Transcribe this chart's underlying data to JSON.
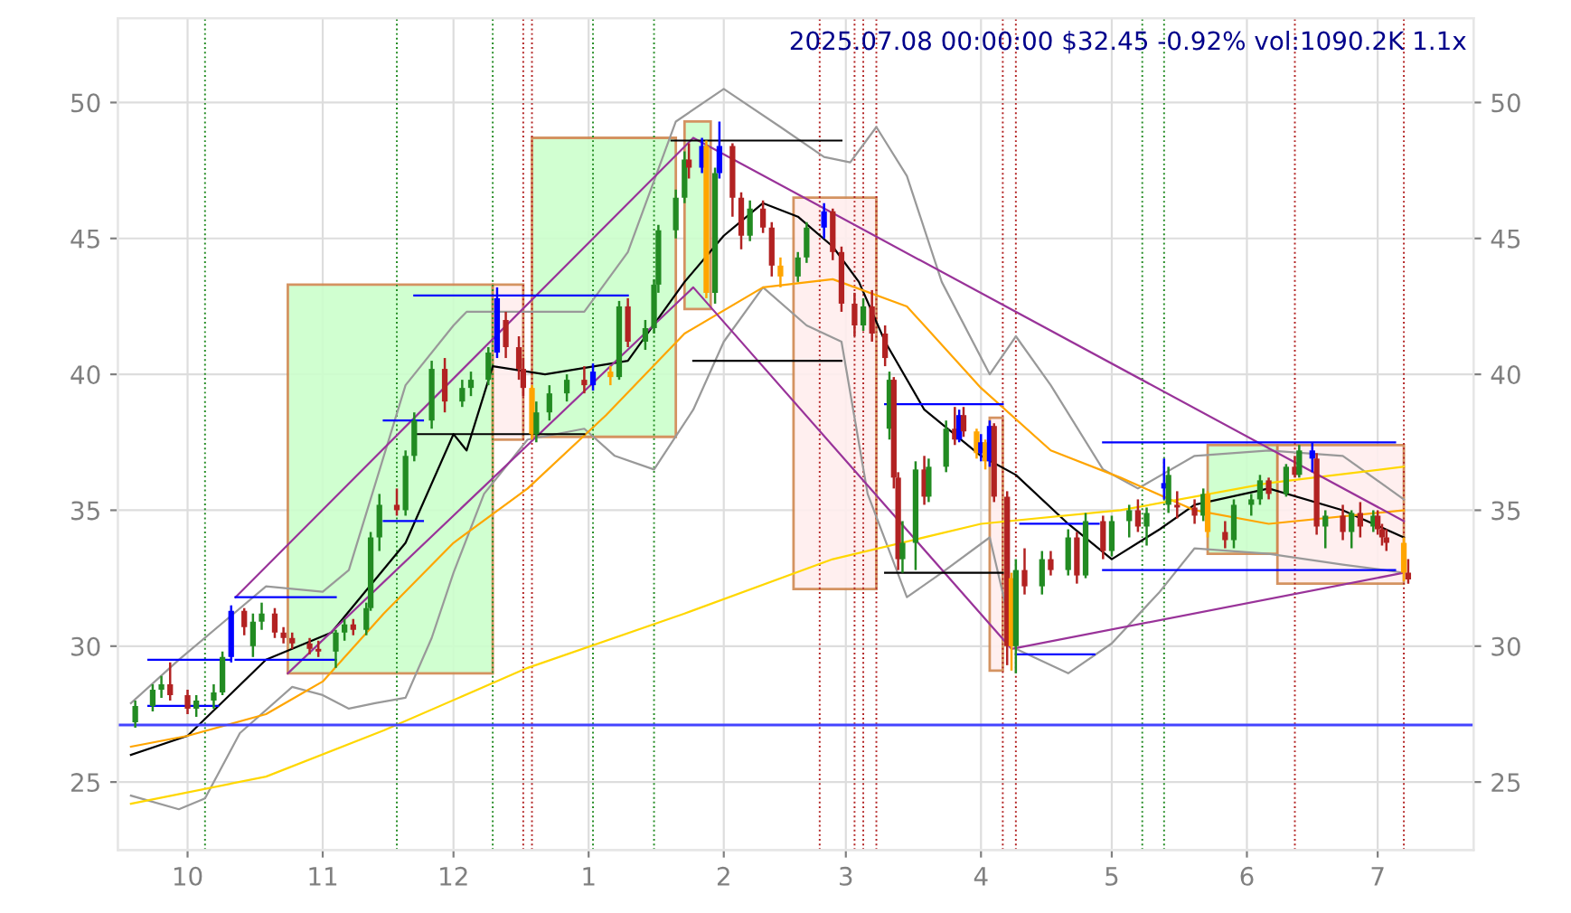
{
  "chart_data": {
    "type": "candlestick",
    "title": "2025.07.08 00:00:00 $32.45 -0.92% vol:1090.2K 1.1x",
    "x": [
      "2024-09-19",
      "2024-09-23",
      "2024-09-25",
      "2024-09-27",
      "2024-10-01",
      "2024-10-03",
      "2024-10-07",
      "2024-10-09",
      "2024-10-11",
      "2024-10-14",
      "2024-10-16",
      "2024-10-18",
      "2024-10-21",
      "2024-10-23",
      "2024-10-25",
      "2024-10-29",
      "2024-10-31",
      "2024-11-04",
      "2024-11-06",
      "2024-11-08",
      "2024-11-11",
      "2024-11-12",
      "2024-11-14",
      "2024-11-18",
      "2024-11-20",
      "2024-11-22",
      "2024-11-26",
      "2024-11-29",
      "2024-12-03",
      "2024-12-05",
      "2024-12-09",
      "2024-12-11",
      "2024-12-13",
      "2024-12-16",
      "2024-12-17",
      "2024-12-19",
      "2024-12-20",
      "2024-12-23",
      "2024-12-27",
      "2024-12-31",
      "2025-01-02",
      "2025-01-06",
      "2025-01-08",
      "2025-01-10",
      "2025-01-14",
      "2025-01-16",
      "2025-01-17",
      "2025-01-21",
      "2025-01-23",
      "2025-01-24",
      "2025-01-27",
      "2025-01-28",
      "2025-01-30",
      "2025-01-31",
      "2025-02-03",
      "2025-02-05",
      "2025-02-07",
      "2025-02-10",
      "2025-02-12",
      "2025-02-14",
      "2025-02-18",
      "2025-02-20",
      "2025-02-24",
      "2025-02-26",
      "2025-02-28",
      "2025-03-03",
      "2025-03-05",
      "2025-03-07",
      "2025-03-10",
      "2025-03-11",
      "2025-03-12",
      "2025-03-13",
      "2025-03-14",
      "2025-03-17",
      "2025-03-19",
      "2025-03-20",
      "2025-03-24",
      "2025-03-26",
      "2025-03-27",
      "2025-03-28",
      "2025-03-31",
      "2025-04-01",
      "2025-04-02",
      "2025-04-03",
      "2025-04-04",
      "2025-04-07",
      "2025-04-08",
      "2025-04-09",
      "2025-04-11",
      "2025-04-15",
      "2025-04-17",
      "2025-04-21",
      "2025-04-23",
      "2025-04-25",
      "2025-04-29",
      "2025-05-01",
      "2025-05-05",
      "2025-05-07",
      "2025-05-09",
      "2025-05-13",
      "2025-05-14",
      "2025-05-16",
      "2025-05-20",
      "2025-05-22",
      "2025-05-23",
      "2025-05-27",
      "2025-05-29",
      "2025-06-02",
      "2025-06-04",
      "2025-06-06",
      "2025-06-10",
      "2025-06-12",
      "2025-06-13",
      "2025-06-16",
      "2025-06-17",
      "2025-06-19",
      "2025-06-23",
      "2025-06-25",
      "2025-06-27",
      "2025-06-30",
      "2025-07-01",
      "2025-07-02",
      "2025-07-03",
      "2025-07-07",
      "2025-07-08"
    ],
    "ohlc": [
      [
        27.2,
        28.0,
        27.0,
        27.8
      ],
      [
        27.8,
        28.6,
        27.6,
        28.4
      ],
      [
        28.4,
        28.9,
        28.1,
        28.6
      ],
      [
        28.6,
        29.4,
        28.0,
        28.2
      ],
      [
        28.2,
        28.4,
        27.5,
        27.7
      ],
      [
        27.7,
        28.2,
        27.4,
        28.0
      ],
      [
        28.0,
        28.6,
        27.7,
        28.3
      ],
      [
        28.3,
        29.8,
        28.2,
        29.6
      ],
      [
        29.6,
        31.5,
        29.4,
        31.3
      ],
      [
        31.3,
        31.4,
        30.4,
        30.7
      ],
      [
        30.0,
        31.2,
        29.6,
        30.9
      ],
      [
        30.9,
        31.6,
        30.6,
        31.2
      ],
      [
        31.2,
        31.4,
        30.3,
        30.5
      ],
      [
        30.5,
        30.7,
        30.1,
        30.3
      ],
      [
        30.3,
        30.5,
        29.9,
        30.1
      ],
      [
        30.1,
        30.3,
        29.7,
        29.9
      ],
      [
        29.9,
        30.2,
        29.6,
        29.8
      ],
      [
        29.8,
        30.6,
        29.2,
        30.5
      ],
      [
        30.5,
        31.0,
        30.2,
        30.8
      ],
      [
        30.8,
        31.0,
        30.4,
        30.6
      ],
      [
        30.6,
        31.6,
        30.4,
        31.4
      ],
      [
        31.4,
        34.2,
        31.3,
        34.0
      ],
      [
        34.0,
        35.6,
        33.5,
        35.2
      ],
      [
        35.2,
        35.8,
        34.8,
        35.0
      ],
      [
        35.0,
        37.2,
        34.8,
        37.0
      ],
      [
        37.0,
        38.6,
        36.8,
        38.3
      ],
      [
        38.3,
        40.5,
        38.0,
        40.2
      ],
      [
        40.2,
        40.6,
        38.6,
        39.0
      ],
      [
        39.0,
        39.8,
        38.8,
        39.5
      ],
      [
        39.5,
        40.1,
        39.2,
        39.8
      ],
      [
        39.8,
        41.0,
        39.6,
        40.8
      ],
      [
        40.8,
        43.2,
        40.6,
        42.8
      ],
      [
        42.0,
        42.3,
        40.6,
        41.0
      ],
      [
        41.0,
        41.4,
        39.8,
        40.2
      ],
      [
        40.2,
        40.6,
        39.2,
        39.5
      ],
      [
        39.5,
        39.6,
        37.6,
        37.8
      ],
      [
        37.8,
        39.0,
        37.5,
        38.6
      ],
      [
        38.6,
        39.6,
        38.3,
        39.3
      ],
      [
        39.3,
        40.0,
        39.0,
        39.8
      ],
      [
        39.8,
        40.3,
        39.3,
        39.6
      ],
      [
        39.6,
        40.4,
        39.4,
        40.1
      ],
      [
        40.1,
        40.3,
        39.6,
        39.9
      ],
      [
        39.9,
        42.7,
        39.8,
        42.5
      ],
      [
        42.5,
        42.8,
        41.0,
        41.2
      ],
      [
        41.2,
        42.0,
        40.9,
        41.7
      ],
      [
        41.7,
        43.5,
        41.5,
        43.3
      ],
      [
        43.3,
        45.5,
        43.0,
        45.3
      ],
      [
        45.3,
        46.8,
        45.0,
        46.5
      ],
      [
        46.5,
        48.2,
        46.3,
        47.9
      ],
      [
        47.9,
        48.5,
        47.2,
        47.6
      ],
      [
        47.6,
        48.7,
        47.4,
        48.4
      ],
      [
        48.4,
        48.6,
        42.8,
        43.0
      ],
      [
        43.0,
        47.6,
        42.6,
        47.4
      ],
      [
        47.4,
        49.3,
        47.2,
        48.4
      ],
      [
        48.4,
        48.5,
        45.8,
        46.5
      ],
      [
        46.5,
        46.7,
        44.6,
        45.1
      ],
      [
        45.1,
        46.4,
        44.9,
        46.1
      ],
      [
        46.1,
        46.4,
        45.2,
        45.4
      ],
      [
        45.4,
        45.6,
        43.6,
        44.0
      ],
      [
        44.0,
        44.3,
        43.2,
        43.6
      ],
      [
        43.6,
        44.5,
        43.4,
        44.3
      ],
      [
        44.3,
        45.6,
        44.1,
        45.4
      ],
      [
        45.4,
        46.3,
        45.0,
        46.0
      ],
      [
        46.0,
        46.1,
        44.2,
        44.5
      ],
      [
        44.5,
        44.7,
        42.3,
        42.6
      ],
      [
        42.6,
        43.0,
        41.4,
        41.8
      ],
      [
        41.8,
        42.8,
        41.6,
        42.5
      ],
      [
        42.5,
        43.1,
        41.2,
        41.5
      ],
      [
        41.5,
        41.8,
        40.3,
        40.6
      ],
      [
        38.0,
        40.1,
        37.6,
        39.8
      ],
      [
        39.8,
        39.9,
        35.8,
        36.2
      ],
      [
        36.2,
        36.4,
        32.8,
        33.2
      ],
      [
        33.2,
        34.6,
        32.7,
        33.8
      ],
      [
        33.8,
        36.8,
        32.8,
        36.5
      ],
      [
        36.5,
        37.0,
        35.2,
        35.5
      ],
      [
        35.5,
        36.9,
        35.3,
        36.6
      ],
      [
        36.6,
        38.3,
        36.4,
        38.0
      ],
      [
        38.0,
        38.8,
        37.4,
        37.6
      ],
      [
        37.6,
        38.7,
        37.5,
        38.5
      ],
      [
        38.5,
        38.8,
        37.7,
        37.9
      ],
      [
        37.9,
        38.0,
        36.9,
        37.1
      ],
      [
        37.1,
        37.8,
        36.8,
        37.5
      ],
      [
        37.5,
        37.6,
        36.5,
        36.8
      ],
      [
        36.8,
        38.3,
        36.6,
        38.1
      ],
      [
        38.1,
        38.2,
        35.3,
        35.5
      ],
      [
        35.5,
        35.7,
        29.3,
        30.0
      ],
      [
        30.0,
        32.7,
        29.1,
        32.5
      ],
      [
        30.0,
        33.2,
        29.0,
        32.8
      ],
      [
        32.8,
        33.6,
        31.9,
        32.2
      ],
      [
        32.2,
        33.5,
        31.9,
        33.2
      ],
      [
        33.2,
        33.5,
        32.6,
        32.8
      ],
      [
        32.8,
        34.3,
        32.6,
        34.0
      ],
      [
        34.0,
        34.2,
        32.3,
        32.6
      ],
      [
        32.6,
        34.9,
        32.5,
        34.6
      ],
      [
        34.6,
        34.8,
        33.2,
        33.5
      ],
      [
        33.5,
        34.8,
        33.3,
        34.6
      ],
      [
        34.6,
        35.2,
        34.0,
        35.0
      ],
      [
        35.0,
        35.4,
        34.2,
        34.4
      ],
      [
        34.4,
        35.1,
        33.7,
        34.9
      ],
      [
        35.8,
        36.9,
        35.4,
        36.0
      ],
      [
        35.2,
        36.6,
        34.9,
        36.3
      ],
      [
        35.2,
        35.7,
        34.7,
        35.1
      ],
      [
        35.1,
        35.4,
        34.5,
        34.8
      ],
      [
        34.8,
        35.8,
        34.6,
        35.6
      ],
      [
        35.6,
        35.7,
        34.0,
        34.2
      ],
      [
        34.2,
        34.6,
        33.6,
        33.9
      ],
      [
        33.9,
        35.4,
        33.6,
        35.2
      ],
      [
        35.2,
        35.6,
        34.8,
        35.4
      ],
      [
        35.4,
        36.3,
        35.2,
        36.1
      ],
      [
        36.1,
        36.2,
        35.4,
        35.6
      ],
      [
        35.6,
        36.7,
        35.5,
        36.6
      ],
      [
        36.6,
        37.0,
        36.2,
        36.3
      ],
      [
        36.3,
        37.4,
        36.2,
        37.2
      ],
      [
        37.2,
        37.5,
        36.4,
        36.9
      ],
      [
        36.9,
        37.1,
        34.1,
        34.4
      ],
      [
        34.4,
        35.0,
        33.6,
        34.8
      ],
      [
        34.8,
        35.2,
        33.9,
        34.2
      ],
      [
        34.2,
        35.0,
        33.6,
        34.9
      ],
      [
        34.9,
        35.3,
        34.0,
        34.4
      ],
      [
        34.4,
        35.0,
        34.2,
        34.8
      ],
      [
        34.8,
        35.0,
        34.1,
        34.3
      ],
      [
        34.3,
        34.5,
        33.7,
        34.0
      ],
      [
        34.0,
        34.3,
        33.5,
        33.8
      ],
      [
        33.8,
        34.0,
        32.4,
        32.7
      ],
      [
        32.7,
        33.2,
        32.3,
        32.45
      ]
    ],
    "colors": [
      "#228b22",
      "#228b22",
      "#228b22",
      "#b22222",
      "#b22222",
      "#228b22",
      "#228b22",
      "#228b22",
      "#0000ff",
      "#b22222",
      "#228b22",
      "#228b22",
      "#b22222",
      "#b22222",
      "#b22222",
      "#b22222",
      "#b22222",
      "#228b22",
      "#228b22",
      "#b22222",
      "#228b22",
      "#228b22",
      "#228b22",
      "#b22222",
      "#228b22",
      "#228b22",
      "#228b22",
      "#b22222",
      "#228b22",
      "#228b22",
      "#228b22",
      "#0000ff",
      "#b22222",
      "#b22222",
      "#b22222",
      "#ffa500",
      "#228b22",
      "#228b22",
      "#228b22",
      "#b22222",
      "#0000ff",
      "#ffa500",
      "#228b22",
      "#b22222",
      "#228b22",
      "#228b22",
      "#228b22",
      "#228b22",
      "#228b22",
      "#b22222",
      "#0000ff",
      "#ffa500",
      "#228b22",
      "#0000ff",
      "#b22222",
      "#b22222",
      "#228b22",
      "#b22222",
      "#b22222",
      "#ffa500",
      "#228b22",
      "#228b22",
      "#0000ff",
      "#b22222",
      "#b22222",
      "#b22222",
      "#228b22",
      "#b22222",
      "#b22222",
      "#228b22",
      "#b22222",
      "#b22222",
      "#228b22",
      "#228b22",
      "#b22222",
      "#228b22",
      "#228b22",
      "#b22222",
      "#0000ff",
      "#b22222",
      "#ffa500",
      "#0000ff",
      "#ffa500",
      "#0000ff",
      "#b22222",
      "#b22222",
      "#ffa500",
      "#228b22",
      "#b22222",
      "#228b22",
      "#b22222",
      "#228b22",
      "#b22222",
      "#228b22",
      "#b22222",
      "#228b22",
      "#228b22",
      "#b22222",
      "#228b22",
      "#0000ff",
      "#228b22",
      "#b22222",
      "#b22222",
      "#228b22",
      "#ffa500",
      "#b22222",
      "#228b22",
      "#228b22",
      "#228b22",
      "#b22222",
      "#228b22",
      "#b22222",
      "#228b22",
      "#0000ff",
      "#b22222",
      "#228b22",
      "#b22222",
      "#228b22",
      "#b22222",
      "#228b22",
      "#b22222",
      "#b22222",
      "#b22222",
      "#ffa500",
      "#b22222"
    ],
    "series": [
      {
        "type": "area",
        "color": "#ccffcc",
        "x": [
          "2024-10-24",
          "2024-10-24",
          "2024-12-10",
          "2024-12-10"
        ],
        "values": [
          29.0,
          43.3,
          43.3,
          29.0
        ]
      },
      {
        "type": "area",
        "color": "#ffeeee",
        "x": [
          "2024-12-10",
          "2024-12-10",
          "2024-12-17",
          "2024-12-17"
        ],
        "values": [
          37.6,
          43.3,
          43.3,
          37.6
        ]
      },
      {
        "type": "area",
        "color": "#ccffcc",
        "x": [
          "2024-12-19",
          "2024-12-19",
          "2025-01-21",
          "2025-01-21"
        ],
        "values": [
          37.7,
          48.7,
          48.7,
          37.7
        ]
      },
      {
        "type": "area",
        "color": "#ccffcc",
        "x": [
          "2025-01-23",
          "2025-01-23",
          "2025-01-29",
          "2025-01-29"
        ],
        "values": [
          42.4,
          49.3,
          49.3,
          42.4
        ]
      },
      {
        "type": "area",
        "color": "#ffeeee",
        "x": [
          "2025-02-17",
          "2025-02-17",
          "2025-03-08",
          "2025-03-08"
        ],
        "values": [
          32.1,
          46.5,
          46.5,
          32.1
        ]
      },
      {
        "type": "area",
        "color": "#ffeeee",
        "x": [
          "2025-04-03",
          "2025-04-03",
          "2025-04-06",
          "2025-04-06"
        ],
        "values": [
          29.1,
          38.4,
          38.4,
          29.1
        ]
      },
      {
        "type": "area",
        "color": "#ccffcc",
        "x": [
          "2025-05-23",
          "2025-05-23",
          "2025-06-08",
          "2025-06-08"
        ],
        "values": [
          33.4,
          37.4,
          37.4,
          33.4
        ]
      },
      {
        "type": "area",
        "color": "#ffeeee",
        "x": [
          "2025-06-08",
          "2025-06-08",
          "2025-07-07",
          "2025-07-07"
        ],
        "values": [
          32.3,
          37.4,
          37.4,
          32.3
        ]
      },
      {
        "type": "line",
        "color": "#999999",
        "x": [
          "2024-09-18",
          "2024-09-29",
          "2024-10-19",
          "2024-11-01",
          "2024-11-07",
          "2024-11-20",
          "2024-12-01",
          "2024-12-04",
          "2024-12-14",
          "2024-12-31",
          "2025-01-10",
          "2025-01-21",
          "2025-02-01",
          "2025-02-14",
          "2025-02-24",
          "2025-03-02",
          "2025-03-08",
          "2025-03-15",
          "2025-03-23",
          "2025-04-03",
          "2025-04-09",
          "2025-04-17",
          "2025-04-29",
          "2025-05-07",
          "2025-05-20",
          "2025-06-06",
          "2025-06-23",
          "2025-07-07"
        ],
        "values": [
          27.9,
          29.5,
          32.2,
          32.0,
          32.8,
          39.6,
          41.8,
          42.3,
          42.3,
          42.3,
          44.5,
          49.3,
          50.5,
          49.1,
          48.0,
          47.8,
          49.1,
          47.3,
          43.4,
          40.0,
          41.4,
          39.6,
          36.5,
          35.8,
          37.0,
          37.2,
          37.0,
          35.4
        ]
      },
      {
        "type": "line",
        "color": "#999999",
        "x": [
          "2024-09-18",
          "2024-09-29",
          "2024-10-05",
          "2024-10-13",
          "2024-10-25",
          "2024-11-01",
          "2024-11-07",
          "2024-11-13",
          "2024-11-20",
          "2024-11-26",
          "2024-12-01",
          "2024-12-08",
          "2024-12-18",
          "2024-12-31",
          "2025-01-07",
          "2025-01-16",
          "2025-01-25",
          "2025-02-01",
          "2025-02-10",
          "2025-02-20",
          "2025-02-28",
          "2025-03-06",
          "2025-03-15",
          "2025-03-23",
          "2025-04-03",
          "2025-04-09",
          "2025-04-21",
          "2025-05-01",
          "2025-05-12",
          "2025-05-20",
          "2025-06-06",
          "2025-06-23",
          "2025-07-07"
        ],
        "values": [
          24.5,
          24.0,
          24.4,
          26.8,
          28.5,
          28.2,
          27.7,
          27.9,
          28.1,
          30.3,
          32.7,
          35.6,
          37.6,
          38.0,
          37.0,
          36.5,
          38.7,
          41.2,
          43.2,
          41.8,
          41.2,
          35.6,
          31.8,
          32.7,
          34.0,
          29.9,
          29.0,
          30.1,
          32.0,
          33.6,
          33.4,
          33.0,
          32.7
        ]
      },
      {
        "type": "line",
        "color": "#000000",
        "x": [
          "2024-09-18",
          "2024-10-01",
          "2024-10-19",
          "2024-11-03",
          "2024-11-20",
          "2024-12-01",
          "2024-12-04",
          "2024-12-10",
          "2024-12-22",
          "2025-01-10",
          "2025-01-23",
          "2025-02-01",
          "2025-02-10",
          "2025-02-18",
          "2025-02-26",
          "2025-03-04",
          "2025-03-10",
          "2025-03-19",
          "2025-04-01",
          "2025-04-09",
          "2025-04-21",
          "2025-05-01",
          "2025-05-12",
          "2025-05-20",
          "2025-06-06",
          "2025-06-23",
          "2025-07-07"
        ],
        "values": [
          26.0,
          26.7,
          29.5,
          30.5,
          33.8,
          37.8,
          37.2,
          40.3,
          40.0,
          40.5,
          43.4,
          45.1,
          46.3,
          45.8,
          44.7,
          43.4,
          41.2,
          38.7,
          37.0,
          36.3,
          34.5,
          33.2,
          34.3,
          35.2,
          35.8,
          35.0,
          34.0
        ]
      },
      {
        "type": "line",
        "color": "#ffa500",
        "x": [
          "2024-09-18",
          "2024-10-01",
          "2024-10-19",
          "2024-11-01",
          "2024-11-15",
          "2024-12-01",
          "2024-12-18",
          "2025-01-05",
          "2025-01-23",
          "2025-02-10",
          "2025-02-26",
          "2025-03-15",
          "2025-04-01",
          "2025-04-17",
          "2025-05-03",
          "2025-05-20",
          "2025-06-06",
          "2025-07-07"
        ],
        "values": [
          26.3,
          26.7,
          27.5,
          28.7,
          31.2,
          33.8,
          35.8,
          38.5,
          41.5,
          43.2,
          43.5,
          42.5,
          39.5,
          37.2,
          36.2,
          35.0,
          34.5,
          35.0
        ]
      },
      {
        "type": "line",
        "color": "#ffd700",
        "x": [
          "2024-09-18",
          "2024-10-19",
          "2024-11-15",
          "2024-12-18",
          "2025-01-23",
          "2025-02-26",
          "2025-04-01",
          "2025-05-03",
          "2025-06-06",
          "2025-07-07"
        ],
        "values": [
          24.2,
          25.2,
          26.9,
          29.2,
          31.2,
          33.2,
          34.5,
          35.0,
          36.0,
          36.6
        ]
      },
      {
        "type": "line",
        "color": "#993399",
        "x": [
          "2024-10-12",
          "2025-01-25",
          "2025-07-07"
        ],
        "values": [
          31.8,
          48.7,
          34.6
        ]
      },
      {
        "type": "line",
        "color": "#993399",
        "x": [
          "2024-10-24",
          "2025-01-25",
          "2025-04-08",
          "2025-07-07"
        ],
        "values": [
          29.0,
          43.2,
          29.9,
          32.7
        ]
      },
      {
        "type": "line",
        "color": "#0000ff",
        "x": [
          "2024-09-22",
          "2024-10-11"
        ],
        "values": [
          29.5,
          29.5
        ]
      },
      {
        "type": "line",
        "color": "#0000ff",
        "x": [
          "2024-09-22",
          "2024-10-08"
        ],
        "values": [
          27.8,
          27.8
        ]
      },
      {
        "type": "line",
        "color": "#0000ff",
        "x": [
          "2024-10-12",
          "2024-11-04"
        ],
        "values": [
          31.8,
          31.8
        ]
      },
      {
        "type": "line",
        "color": "#0000ff",
        "x": [
          "2024-10-12",
          "2024-11-04"
        ],
        "values": [
          29.5,
          29.5
        ]
      },
      {
        "type": "line",
        "color": "#0000ff",
        "x": [
          "2024-11-22",
          "2025-01-10"
        ],
        "values": [
          42.9,
          42.9
        ]
      },
      {
        "type": "line",
        "color": "#0000ff",
        "x": [
          "2024-11-15",
          "2024-11-24"
        ],
        "values": [
          38.3,
          38.3
        ]
      },
      {
        "type": "line",
        "color": "#0000ff",
        "x": [
          "2024-11-15",
          "2024-11-24"
        ],
        "values": [
          34.6,
          34.6
        ]
      },
      {
        "type": "line",
        "color": "#000000",
        "x": [
          "2024-11-22",
          "2024-12-31"
        ],
        "values": [
          37.8,
          37.8
        ]
      },
      {
        "type": "line",
        "color": "#000000",
        "x": [
          "2025-01-20",
          "2025-02-28"
        ],
        "values": [
          48.6,
          48.6
        ]
      },
      {
        "type": "line",
        "color": "#000000",
        "x": [
          "2025-01-25",
          "2025-02-28"
        ],
        "values": [
          40.5,
          40.5
        ]
      },
      {
        "type": "line",
        "color": "#0000ff",
        "x": [
          "2025-03-10",
          "2025-04-06"
        ],
        "values": [
          38.9,
          38.9
        ]
      },
      {
        "type": "line",
        "color": "#000000",
        "x": [
          "2025-03-10",
          "2025-04-06"
        ],
        "values": [
          32.7,
          32.7
        ]
      },
      {
        "type": "line",
        "color": "#0000ff",
        "x": [
          "2025-04-09",
          "2025-04-27"
        ],
        "values": [
          29.7,
          29.7
        ]
      },
      {
        "type": "line",
        "color": "#0000ff",
        "x": [
          "2025-04-10",
          "2025-04-28"
        ],
        "values": [
          34.5,
          34.5
        ]
      },
      {
        "type": "line",
        "color": "#0000ff",
        "x": [
          "2025-04-29",
          "2025-07-05"
        ],
        "values": [
          37.5,
          37.5
        ]
      },
      {
        "type": "line",
        "color": "#0000ff",
        "x": [
          "2025-04-29",
          "2025-07-05"
        ],
        "values": [
          32.8,
          32.8
        ]
      }
    ],
    "ref_lines": [
      {
        "axis": "y",
        "value": 27.1,
        "color": "#4444ff"
      },
      {
        "axis": "x",
        "value": "2024-10-05",
        "color": "#228b22",
        "line_style": "dotted"
      },
      {
        "axis": "x",
        "value": "2024-11-18",
        "color": "#228b22",
        "line_style": "dotted"
      },
      {
        "axis": "x",
        "value": "2024-12-10",
        "color": "#228b22",
        "line_style": "dotted"
      },
      {
        "axis": "x",
        "value": "2024-12-17",
        "color": "#b22222",
        "line_style": "dotted"
      },
      {
        "axis": "x",
        "value": "2024-12-19",
        "color": "#b22222",
        "line_style": "dotted"
      },
      {
        "axis": "x",
        "value": "2025-01-02",
        "color": "#228b22",
        "line_style": "dotted"
      },
      {
        "axis": "x",
        "value": "2025-01-16",
        "color": "#228b22",
        "line_style": "dotted"
      },
      {
        "axis": "x",
        "value": "2025-02-23",
        "color": "#b22222",
        "line_style": "dotted"
      },
      {
        "axis": "x",
        "value": "2025-03-03",
        "color": "#b22222",
        "line_style": "dotted"
      },
      {
        "axis": "x",
        "value": "2025-03-05",
        "color": "#b22222",
        "line_style": "dotted"
      },
      {
        "axis": "x",
        "value": "2025-03-08",
        "color": "#b22222",
        "line_style": "dotted"
      },
      {
        "axis": "x",
        "value": "2025-04-06",
        "color": "#b22222",
        "line_style": "dotted"
      },
      {
        "axis": "x",
        "value": "2025-04-09",
        "color": "#b22222",
        "line_style": "dotted"
      },
      {
        "axis": "x",
        "value": "2025-05-08",
        "color": "#228b22",
        "line_style": "dotted"
      },
      {
        "axis": "x",
        "value": "2025-05-13",
        "color": "#228b22",
        "line_style": "dotted"
      },
      {
        "axis": "x",
        "value": "2025-06-12",
        "color": "#b22222",
        "line_style": "dotted"
      },
      {
        "axis": "x",
        "value": "2025-07-07",
        "color": "#b22222",
        "line_style": "dotted"
      }
    ],
    "xlim": [
      "2024-09-15",
      "2025-07-23"
    ],
    "xticks": [
      {
        "value": "2024-10-01",
        "label": "10"
      },
      {
        "value": "2024-11-01",
        "label": "11"
      },
      {
        "value": "2024-12-01",
        "label": "12"
      },
      {
        "value": "2025-01-01",
        "label": "1"
      },
      {
        "value": "2025-02-01",
        "label": "2"
      },
      {
        "value": "2025-03-01",
        "label": "3"
      },
      {
        "value": "2025-04-01",
        "label": "4"
      },
      {
        "value": "2025-05-01",
        "label": "5"
      },
      {
        "value": "2025-06-01",
        "label": "6"
      },
      {
        "value": "2025-07-01",
        "label": "7"
      }
    ],
    "ylim": [
      22.5,
      53.1
    ],
    "yticks": [
      25,
      30,
      35,
      40,
      45,
      50
    ],
    "y2lim": [
      22.5,
      53.1
    ],
    "y2ticks": [
      25,
      30,
      35,
      40,
      45,
      50
    ],
    "grid": true
  }
}
